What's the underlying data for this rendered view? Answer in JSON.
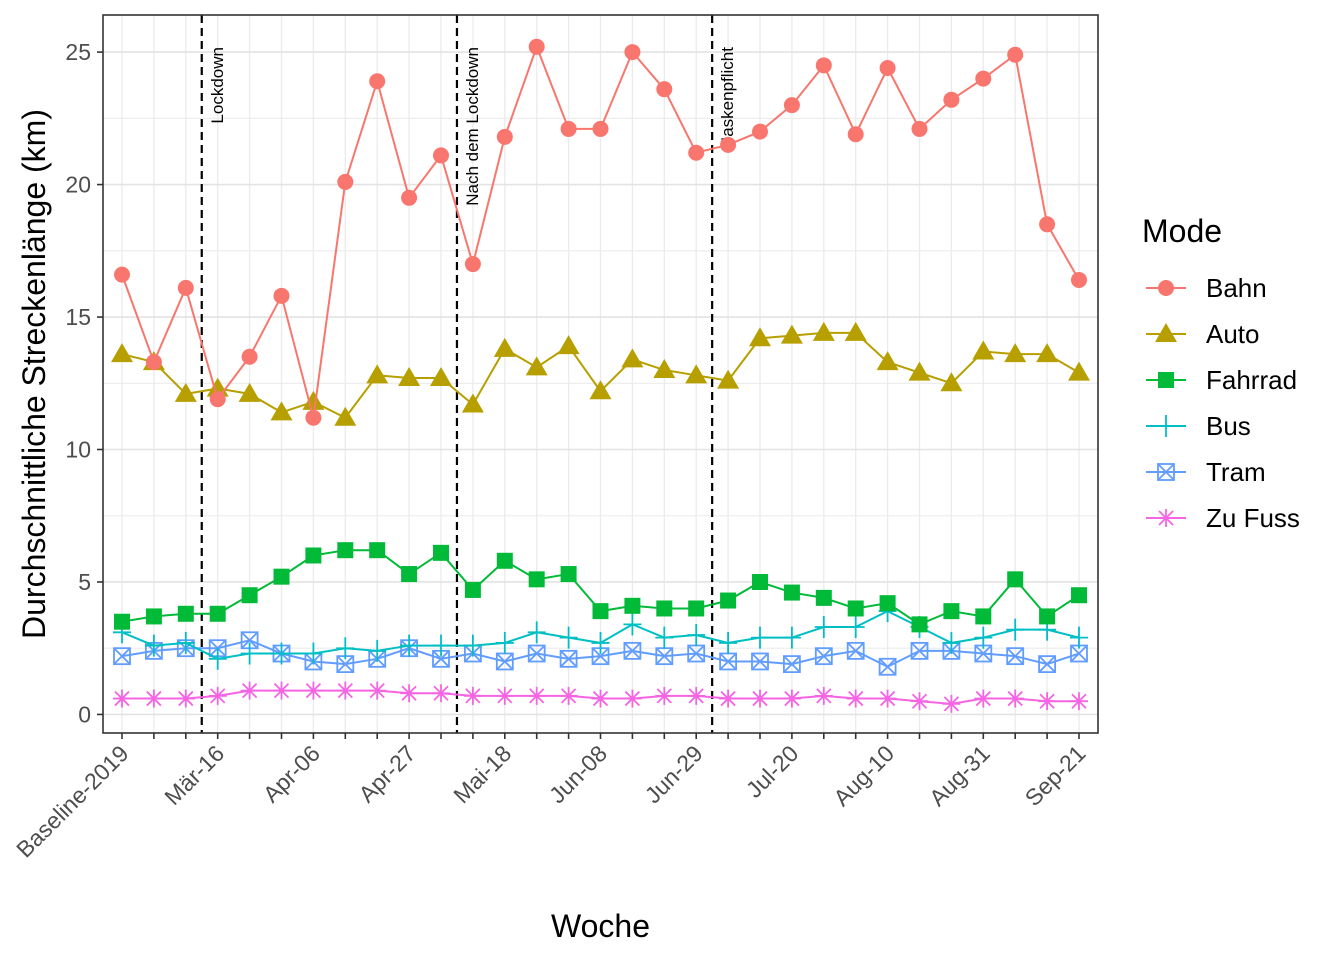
{
  "chart_data": {
    "type": "line",
    "xlabel": "Woche",
    "ylabel": "Durchschnittliche Streckenlänge (km)",
    "ylim": [
      -0.7,
      26.4
    ],
    "y_ticks": [
      0,
      5,
      10,
      15,
      20,
      25
    ],
    "x_count": 31,
    "x_tick_indices": [
      0,
      3,
      6,
      9,
      12,
      15,
      18,
      21,
      24,
      27,
      30
    ],
    "x_tick_labels": [
      "Baseline-2019",
      "Mär-16",
      "Apr-06",
      "Apr-27",
      "Mai-18",
      "Jun-08",
      "Jun-29",
      "Jul-20",
      "Aug-10",
      "Aug-31",
      "Sep-21"
    ],
    "grid": true,
    "legend_position": "right",
    "legend_title": "Mode",
    "vlines": [
      {
        "x": 2.5,
        "label": "Lockdown"
      },
      {
        "x": 10.5,
        "label": "Nach dem Lockdown"
      },
      {
        "x": 18.5,
        "label": "Maskenpflicht"
      }
    ],
    "series": [
      {
        "name": "Bahn",
        "color": "#F8766D",
        "marker": "circle",
        "values": [
          16.6,
          13.3,
          16.1,
          11.9,
          13.5,
          15.8,
          11.2,
          20.1,
          23.9,
          19.5,
          21.1,
          17.0,
          21.8,
          25.2,
          22.1,
          22.1,
          25.0,
          23.6,
          21.2,
          21.5,
          22.0,
          23.0,
          24.5,
          21.9,
          24.4,
          22.1,
          23.2,
          24.0,
          24.9,
          18.5,
          16.4
        ]
      },
      {
        "name": "Auto",
        "color": "#B79F00",
        "marker": "triangle",
        "values": [
          13.6,
          13.3,
          12.1,
          12.3,
          12.1,
          11.4,
          11.8,
          11.2,
          12.8,
          12.7,
          12.7,
          11.7,
          13.8,
          13.1,
          13.9,
          12.2,
          13.4,
          13.0,
          12.8,
          12.6,
          14.2,
          14.3,
          14.4,
          14.4,
          13.3,
          12.9,
          12.5,
          13.7,
          13.6,
          13.6,
          12.9
        ]
      },
      {
        "name": "Fahrrad",
        "color": "#00BA38",
        "marker": "square",
        "values": [
          3.5,
          3.7,
          3.8,
          3.8,
          4.5,
          5.2,
          6.0,
          6.2,
          6.2,
          5.3,
          6.1,
          4.7,
          5.8,
          5.1,
          5.3,
          3.9,
          4.1,
          4.0,
          4.0,
          4.3,
          5.0,
          4.6,
          4.4,
          4.0,
          4.2,
          3.4,
          3.9,
          3.7,
          5.1,
          3.7,
          4.5
        ]
      },
      {
        "name": "Bus",
        "color": "#00BFC4",
        "marker": "plus",
        "values": [
          3.1,
          2.6,
          2.7,
          2.1,
          2.3,
          2.3,
          2.3,
          2.5,
          2.4,
          2.6,
          2.6,
          2.6,
          2.7,
          3.1,
          2.9,
          2.7,
          3.4,
          2.9,
          3.0,
          2.7,
          2.9,
          2.9,
          3.3,
          3.3,
          3.9,
          3.3,
          2.7,
          2.9,
          3.2,
          3.2,
          2.9
        ]
      },
      {
        "name": "Tram",
        "color": "#619CFF",
        "marker": "boxx",
        "values": [
          2.2,
          2.4,
          2.5,
          2.5,
          2.8,
          2.3,
          2.0,
          1.9,
          2.1,
          2.5,
          2.1,
          2.3,
          2.0,
          2.3,
          2.1,
          2.2,
          2.4,
          2.2,
          2.3,
          2.0,
          2.0,
          1.9,
          2.2,
          2.4,
          1.8,
          2.4,
          2.4,
          2.3,
          2.2,
          1.9,
          2.3
        ]
      },
      {
        "name": "Zu Fuss",
        "color": "#F564E3",
        "marker": "asterisk",
        "values": [
          0.6,
          0.6,
          0.6,
          0.7,
          0.9,
          0.9,
          0.9,
          0.9,
          0.9,
          0.8,
          0.8,
          0.7,
          0.7,
          0.7,
          0.7,
          0.6,
          0.6,
          0.7,
          0.7,
          0.6,
          0.6,
          0.6,
          0.7,
          0.6,
          0.6,
          0.5,
          0.4,
          0.6,
          0.6,
          0.5,
          0.5
        ]
      }
    ]
  }
}
